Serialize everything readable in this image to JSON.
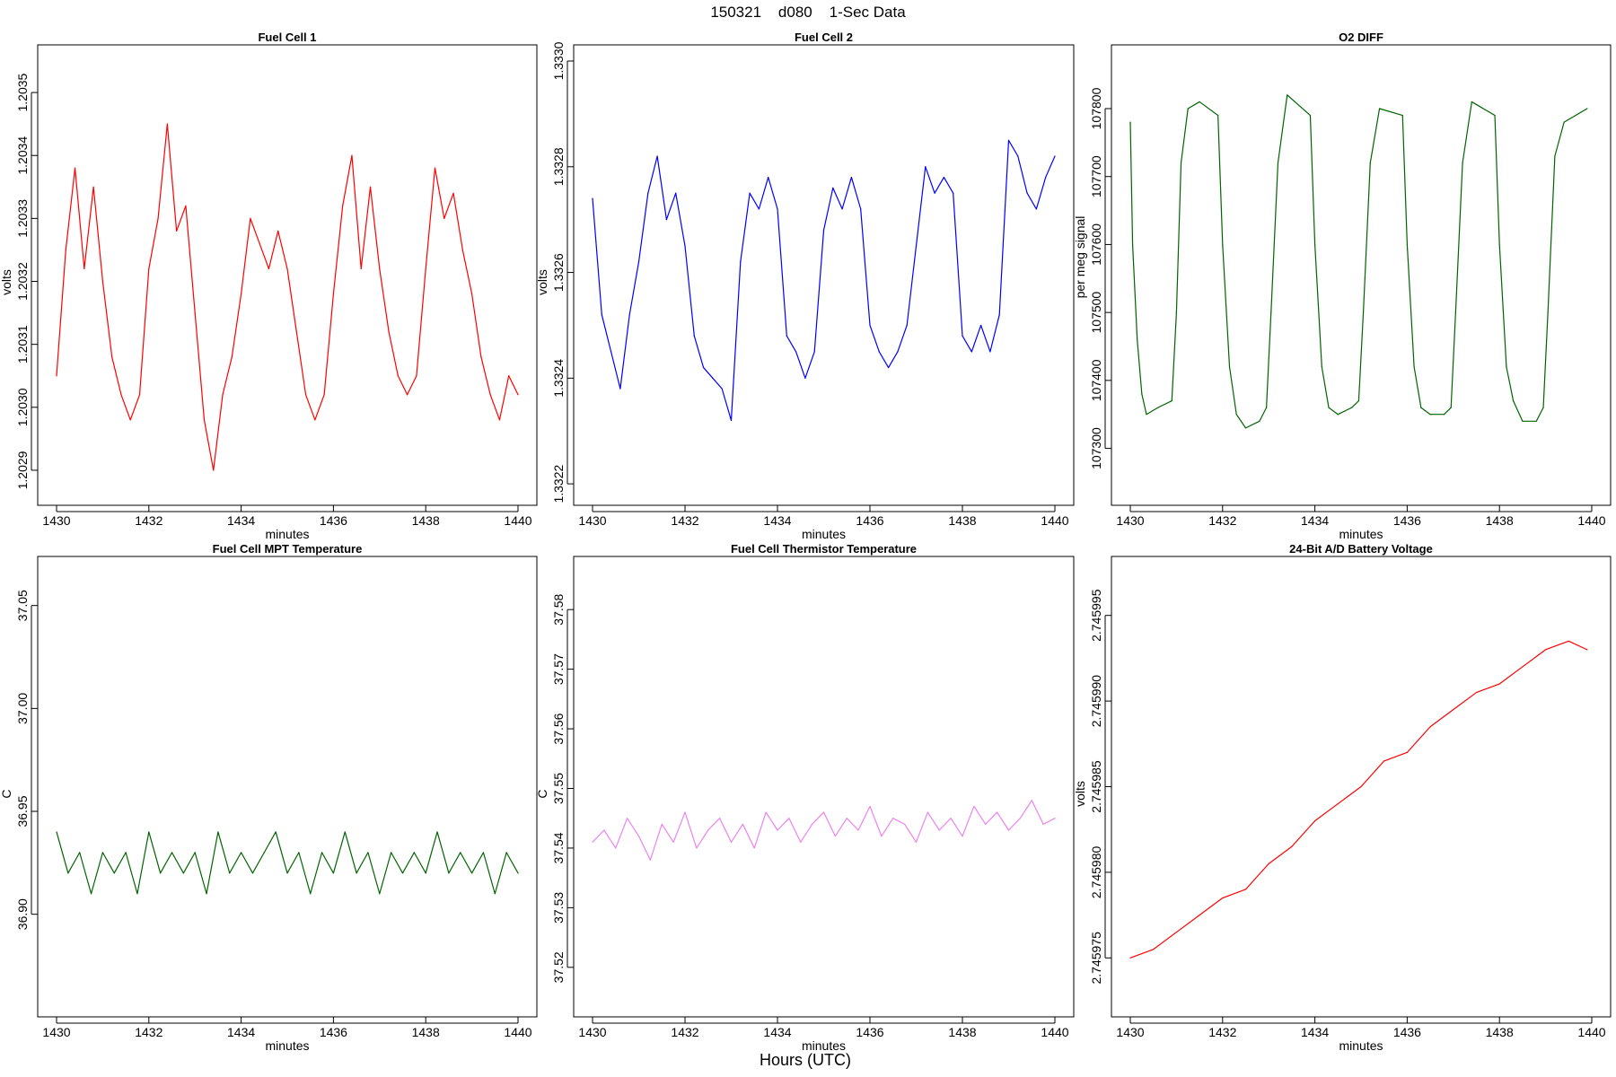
{
  "page": {
    "title": "150321    d080    1-Sec Data",
    "xlabel": "Hours (UTC)"
  },
  "chart_data": [
    {
      "type": "line",
      "title": "Fuel Cell 1",
      "xlabel": "minutes",
      "ylabel": "volts",
      "color": "#ff0000",
      "xlim": [
        1430,
        1440
      ],
      "ylim": [
        1.20287,
        1.20355
      ],
      "xticks": [
        "1430",
        "1432",
        "1434",
        "1436",
        "1438",
        "1440"
      ],
      "yticks": [
        "1.2029",
        "1.2030",
        "1.2031",
        "1.2032",
        "1.2033",
        "1.2034",
        "1.2035"
      ],
      "series": [
        {
          "x": [
            1430.0,
            1430.2,
            1430.4,
            1430.6,
            1430.8,
            1431.0,
            1431.2,
            1431.4,
            1431.6,
            1431.8,
            1432.0,
            1432.2,
            1432.4,
            1432.6,
            1432.8,
            1433.0,
            1433.2,
            1433.4,
            1433.6,
            1433.8,
            1434.0,
            1434.2,
            1434.4,
            1434.6,
            1434.8,
            1435.0,
            1435.2,
            1435.4,
            1435.6,
            1435.8,
            1436.0,
            1436.2,
            1436.4,
            1436.6,
            1436.8,
            1437.0,
            1437.2,
            1437.4,
            1437.6,
            1437.8,
            1438.0,
            1438.2,
            1438.4,
            1438.6,
            1438.8,
            1439.0,
            1439.2,
            1439.4,
            1439.6,
            1439.8,
            1440.0
          ],
          "y": [
            1.20305,
            1.20325,
            1.20338,
            1.20322,
            1.20335,
            1.2032,
            1.20308,
            1.20302,
            1.20298,
            1.20302,
            1.20322,
            1.2033,
            1.20345,
            1.20328,
            1.20332,
            1.20315,
            1.20298,
            1.2029,
            1.20302,
            1.20308,
            1.20318,
            1.2033,
            1.20326,
            1.20322,
            1.20328,
            1.20322,
            1.20312,
            1.20302,
            1.20298,
            1.20302,
            1.20318,
            1.20332,
            1.2034,
            1.20322,
            1.20335,
            1.20322,
            1.20312,
            1.20305,
            1.20302,
            1.20305,
            1.20322,
            1.20338,
            1.2033,
            1.20334,
            1.20325,
            1.20318,
            1.20308,
            1.20302,
            1.20298,
            1.20305,
            1.20302
          ]
        }
      ]
    },
    {
      "type": "line",
      "title": "Fuel Cell 2",
      "xlabel": "minutes",
      "ylabel": "volts",
      "color": "#0000ff",
      "xlim": [
        1430,
        1440
      ],
      "ylim": [
        1.33219,
        1.333
      ],
      "xticks": [
        "1430",
        "1432",
        "1434",
        "1436",
        "1438",
        "1440"
      ],
      "yticks": [
        "1.3322",
        "1.3324",
        "1.3326",
        "1.3328",
        "1.3330"
      ],
      "series": [
        {
          "x": [
            1430.0,
            1430.2,
            1430.4,
            1430.6,
            1430.8,
            1431.0,
            1431.2,
            1431.4,
            1431.6,
            1431.8,
            1432.0,
            1432.2,
            1432.4,
            1432.6,
            1432.8,
            1433.0,
            1433.2,
            1433.4,
            1433.6,
            1433.8,
            1434.0,
            1434.2,
            1434.4,
            1434.6,
            1434.8,
            1435.0,
            1435.2,
            1435.4,
            1435.6,
            1435.8,
            1436.0,
            1436.2,
            1436.4,
            1436.6,
            1436.8,
            1437.0,
            1437.2,
            1437.4,
            1437.6,
            1437.8,
            1438.0,
            1438.2,
            1438.4,
            1438.6,
            1438.8,
            1439.0,
            1439.2,
            1439.4,
            1439.6,
            1439.8,
            1440.0
          ],
          "y": [
            1.33274,
            1.33252,
            1.33245,
            1.33238,
            1.33252,
            1.33262,
            1.33275,
            1.33282,
            1.3327,
            1.33275,
            1.33265,
            1.33248,
            1.33242,
            1.3324,
            1.33238,
            1.33232,
            1.33262,
            1.33275,
            1.33272,
            1.33278,
            1.33272,
            1.33248,
            1.33245,
            1.3324,
            1.33245,
            1.33268,
            1.33276,
            1.33272,
            1.33278,
            1.33272,
            1.3325,
            1.33245,
            1.33242,
            1.33245,
            1.3325,
            1.33265,
            1.3328,
            1.33275,
            1.33278,
            1.33275,
            1.33248,
            1.33245,
            1.3325,
            1.33245,
            1.33252,
            1.33285,
            1.33282,
            1.33275,
            1.33272,
            1.33278,
            1.33282
          ]
        }
      ]
    },
    {
      "type": "line",
      "title": "O2 DIFF",
      "xlabel": "minutes",
      "ylabel": "per meg signal",
      "color": "#006400",
      "xlim": [
        1430,
        1440
      ],
      "ylim": [
        107240,
        107870
      ],
      "xticks": [
        "1430",
        "1432",
        "1434",
        "1436",
        "1438",
        "1440"
      ],
      "yticks": [
        "107300",
        "107400",
        "107500",
        "107600",
        "107700",
        "107800"
      ],
      "series": [
        {
          "x": [
            1430.0,
            1430.05,
            1430.15,
            1430.25,
            1430.35,
            1430.6,
            1430.9,
            1431.0,
            1431.1,
            1431.25,
            1431.5,
            1431.9,
            1432.0,
            1432.15,
            1432.3,
            1432.5,
            1432.8,
            1432.95,
            1433.05,
            1433.2,
            1433.4,
            1433.9,
            1434.0,
            1434.15,
            1434.3,
            1434.5,
            1434.8,
            1434.95,
            1435.05,
            1435.2,
            1435.4,
            1435.9,
            1436.0,
            1436.15,
            1436.3,
            1436.5,
            1436.8,
            1436.95,
            1437.05,
            1437.2,
            1437.4,
            1437.9,
            1438.0,
            1438.15,
            1438.3,
            1438.5,
            1438.8,
            1438.95,
            1439.05,
            1439.2,
            1439.4,
            1439.9
          ],
          "y": [
            107780,
            107600,
            107460,
            107380,
            107350,
            107360,
            107370,
            107500,
            107720,
            107800,
            107810,
            107790,
            107600,
            107420,
            107350,
            107330,
            107340,
            107360,
            107500,
            107720,
            107820,
            107790,
            107600,
            107420,
            107360,
            107350,
            107360,
            107370,
            107500,
            107720,
            107800,
            107790,
            107600,
            107420,
            107360,
            107350,
            107350,
            107360,
            107500,
            107720,
            107810,
            107790,
            107600,
            107420,
            107370,
            107340,
            107340,
            107360,
            107500,
            107730,
            107780,
            107800
          ]
        }
      ]
    },
    {
      "type": "line",
      "title": "Fuel Cell MPT Temperature",
      "xlabel": "minutes",
      "ylabel": "C",
      "color": "#006400",
      "xlim": [
        1430,
        1440
      ],
      "ylim": [
        36.858,
        37.066
      ],
      "xticks": [
        "1430",
        "1432",
        "1434",
        "1436",
        "1438",
        "1440"
      ],
      "yticks": [
        "36.90",
        "36.95",
        "37.00",
        "37.05"
      ],
      "series": [
        {
          "x": [
            1430.0,
            1430.25,
            1430.5,
            1430.75,
            1431.0,
            1431.25,
            1431.5,
            1431.75,
            1432.0,
            1432.25,
            1432.5,
            1432.75,
            1433.0,
            1433.25,
            1433.5,
            1433.75,
            1434.0,
            1434.25,
            1434.5,
            1434.75,
            1435.0,
            1435.25,
            1435.5,
            1435.75,
            1436.0,
            1436.25,
            1436.5,
            1436.75,
            1437.0,
            1437.25,
            1437.5,
            1437.75,
            1438.0,
            1438.25,
            1438.5,
            1438.75,
            1439.0,
            1439.25,
            1439.5,
            1439.75,
            1440.0
          ],
          "y": [
            36.94,
            36.92,
            36.93,
            36.91,
            36.93,
            36.92,
            36.93,
            36.91,
            36.94,
            36.92,
            36.93,
            36.92,
            36.93,
            36.91,
            36.94,
            36.92,
            36.93,
            36.92,
            36.93,
            36.94,
            36.92,
            36.93,
            36.91,
            36.93,
            36.92,
            36.94,
            36.92,
            36.93,
            36.91,
            36.93,
            36.92,
            36.93,
            36.92,
            36.94,
            36.92,
            36.93,
            36.92,
            36.93,
            36.91,
            36.93,
            36.92
          ]
        }
      ]
    },
    {
      "type": "line",
      "title": "Fuel Cell Thermistor Temperature",
      "xlabel": "minutes",
      "ylabel": "C",
      "color": "#ee82ee",
      "xlim": [
        1430,
        1440
      ],
      "ylim": [
        37.5144,
        37.5862
      ],
      "xticks": [
        "1430",
        "1432",
        "1434",
        "1436",
        "1438",
        "1440"
      ],
      "yticks": [
        "37.52",
        "37.53",
        "37.54",
        "37.55",
        "37.56",
        "37.57",
        "37.58"
      ],
      "series": [
        {
          "x": [
            1430.0,
            1430.25,
            1430.5,
            1430.75,
            1431.0,
            1431.25,
            1431.5,
            1431.75,
            1432.0,
            1432.25,
            1432.5,
            1432.75,
            1433.0,
            1433.25,
            1433.5,
            1433.75,
            1434.0,
            1434.25,
            1434.5,
            1434.75,
            1435.0,
            1435.25,
            1435.5,
            1435.75,
            1436.0,
            1436.25,
            1436.5,
            1436.75,
            1437.0,
            1437.25,
            1437.5,
            1437.75,
            1438.0,
            1438.25,
            1438.5,
            1438.75,
            1439.0,
            1439.25,
            1439.5,
            1439.75,
            1440.0
          ],
          "y": [
            37.541,
            37.543,
            37.54,
            37.545,
            37.542,
            37.538,
            37.544,
            37.541,
            37.546,
            37.54,
            37.543,
            37.545,
            37.541,
            37.544,
            37.54,
            37.546,
            37.543,
            37.545,
            37.541,
            37.544,
            37.546,
            37.542,
            37.545,
            37.543,
            37.547,
            37.542,
            37.545,
            37.544,
            37.541,
            37.546,
            37.543,
            37.545,
            37.542,
            37.547,
            37.544,
            37.546,
            37.543,
            37.545,
            37.548,
            37.544,
            37.545
          ]
        }
      ]
    },
    {
      "type": "line",
      "title": "24-Bit A/D Battery Voltage",
      "xlabel": "minutes",
      "ylabel": "volts",
      "color": "#ff0000",
      "xlim": [
        1430,
        1440
      ],
      "ylim": [
        2.7459725,
        2.7459975
      ],
      "xticks": [
        "1430",
        "1432",
        "1434",
        "1436",
        "1438",
        "1440"
      ],
      "yticks": [
        "2.745975",
        "2.745980",
        "2.745985",
        "2.745990",
        "2.745995"
      ],
      "series": [
        {
          "x": [
            1430.0,
            1430.5,
            1431.0,
            1431.5,
            1432.0,
            1432.5,
            1433.0,
            1433.5,
            1434.0,
            1434.5,
            1435.0,
            1435.5,
            1436.0,
            1436.5,
            1437.0,
            1437.5,
            1438.0,
            1438.5,
            1439.0,
            1439.5,
            1439.9
          ],
          "y": [
            2.745975,
            2.7459755,
            2.7459765,
            2.7459775,
            2.7459785,
            2.745979,
            2.7459805,
            2.7459815,
            2.745983,
            2.745984,
            2.745985,
            2.7459865,
            2.745987,
            2.7459885,
            2.7459895,
            2.7459905,
            2.745991,
            2.745992,
            2.745993,
            2.7459935,
            2.745993
          ]
        }
      ]
    }
  ]
}
